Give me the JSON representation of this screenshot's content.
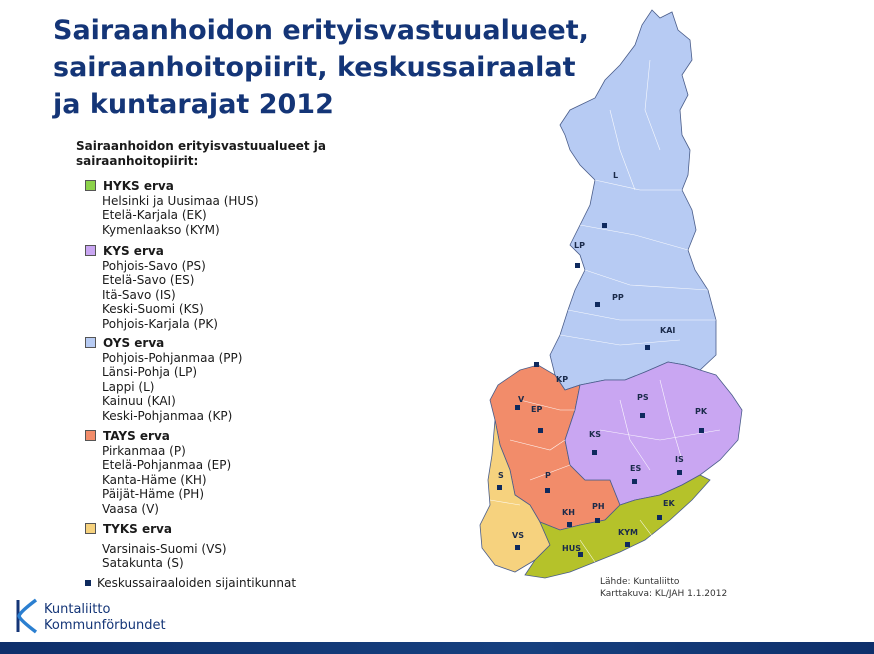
{
  "title": {
    "line1": "Sairaanhoidon erityisvastuualueet,",
    "line2": "sairaanhoitopiirit, keskussairaalat",
    "line3": "ja kuntarajat 2012"
  },
  "legend": {
    "heading_line1": "Sairaanhoidon erityisvastuualueet ja",
    "heading_line2": "sairaanhoitopiirit:",
    "groups": [
      {
        "label": "HYKS erva",
        "color": "#8cd24a",
        "items": [
          "Helsinki ja Uusimaa (HUS)",
          "Etelä-Karjala (EK)",
          "Kymenlaakso (KYM)"
        ]
      },
      {
        "label": "KYS erva",
        "color": "#c9a6f2",
        "items": [
          "Pohjois-Savo (PS)",
          "Etelä-Savo (ES)",
          "Itä-Savo (IS)",
          "Keski-Suomi (KS)",
          "Pohjois-Karjala (PK)"
        ]
      },
      {
        "label": "OYS erva",
        "color": "#b7cbf3",
        "items": [
          "Pohjois-Pohjanmaa (PP)",
          "Länsi-Pohja (LP)",
          "Lappi (L)",
          "Kainuu (KAI)",
          "Keski-Pohjanmaa (KP)"
        ]
      },
      {
        "label": "TAYS erva",
        "color": "#f28c6a",
        "items": [
          "Pirkanmaa (P)",
          "Etelä-Pohjanmaa (EP)",
          "Kanta-Häme (KH)",
          "Päijät-Häme (PH)",
          "Vaasa (V)"
        ]
      },
      {
        "label": "TYKS erva",
        "color": "#f6d27e",
        "items": [
          "Varsinais-Suomi (VS)",
          "Satakunta (S)"
        ]
      }
    ],
    "central_hospitals_label": "Keskussairaaloiden sijaintikunnat"
  },
  "map": {
    "region_labels": [
      "L",
      "LP",
      "PP",
      "KAI",
      "KP",
      "EP",
      "PS",
      "PK",
      "KS",
      "ES",
      "IS",
      "S",
      "V",
      "P",
      "PH",
      "KH",
      "VS",
      "HUS",
      "KYM",
      "EK"
    ],
    "colors": {
      "oys": "#b7cbf3",
      "kys": "#c9a6f2",
      "tays": "#f28c6a",
      "tyks": "#f6d27e",
      "hyks": "#b5c22a",
      "border": "#ffffff",
      "outline": "#4a5d8a",
      "hospital": "#0f2a5e"
    }
  },
  "source": {
    "line1": "Lähde: Kuntaliitto",
    "line2": "Karttakuva: KL/JAH 1.1.2012"
  },
  "logo": {
    "line1": "Kuntaliitto",
    "line2": "Kommunförbundet",
    "color": "#143577"
  }
}
